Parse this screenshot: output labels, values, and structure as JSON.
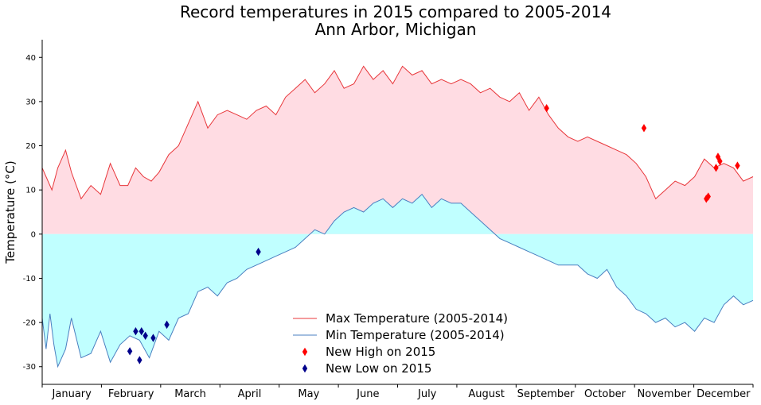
{
  "chart_data": {
    "type": "line",
    "title": "Record temperatures in 2015 compared to 2005-2014",
    "subtitle": "Ann Arbor, Michigan",
    "xlabel": "",
    "ylabel": "Temperature (°C)",
    "xlim": [
      0,
      365
    ],
    "ylim": [
      -34,
      44
    ],
    "yticks": [
      -30,
      -20,
      -10,
      0,
      10,
      20,
      30,
      40
    ],
    "months": [
      "January",
      "February",
      "March",
      "April",
      "May",
      "June",
      "July",
      "August",
      "September",
      "October",
      "November",
      "December"
    ],
    "grid": false,
    "legend": "lower-center",
    "colors": {
      "max_line": "#e8373b",
      "min_line": "#4a7fc0",
      "upper_fill": "#ffdce3",
      "lower_fill": "#c0ffff",
      "high_marker": "#ff0000",
      "low_marker": "#00008b"
    },
    "series": [
      {
        "name": "Max Temperature (2005-2014)",
        "points": [
          [
            0,
            15
          ],
          [
            5,
            10
          ],
          [
            8,
            15
          ],
          [
            12,
            19
          ],
          [
            15,
            14
          ],
          [
            20,
            8
          ],
          [
            25,
            11
          ],
          [
            30,
            9
          ],
          [
            35,
            16
          ],
          [
            40,
            11
          ],
          [
            44,
            11
          ],
          [
            48,
            15
          ],
          [
            52,
            13
          ],
          [
            56,
            12
          ],
          [
            60,
            14
          ],
          [
            65,
            18
          ],
          [
            70,
            20
          ],
          [
            75,
            25
          ],
          [
            80,
            30
          ],
          [
            85,
            24
          ],
          [
            90,
            27
          ],
          [
            95,
            28
          ],
          [
            100,
            27
          ],
          [
            105,
            26
          ],
          [
            110,
            28
          ],
          [
            115,
            29
          ],
          [
            120,
            27
          ],
          [
            125,
            31
          ],
          [
            130,
            33
          ],
          [
            135,
            35
          ],
          [
            140,
            32
          ],
          [
            145,
            34
          ],
          [
            150,
            37
          ],
          [
            155,
            33
          ],
          [
            160,
            34
          ],
          [
            165,
            38
          ],
          [
            170,
            35
          ],
          [
            175,
            37
          ],
          [
            180,
            34
          ],
          [
            185,
            38
          ],
          [
            190,
            36
          ],
          [
            195,
            37
          ],
          [
            200,
            34
          ],
          [
            205,
            35
          ],
          [
            210,
            34
          ],
          [
            215,
            35
          ],
          [
            220,
            34
          ],
          [
            225,
            32
          ],
          [
            230,
            33
          ],
          [
            235,
            31
          ],
          [
            240,
            30
          ],
          [
            245,
            32
          ],
          [
            250,
            28
          ],
          [
            255,
            31
          ],
          [
            260,
            27
          ],
          [
            265,
            24
          ],
          [
            270,
            22
          ],
          [
            275,
            21
          ],
          [
            280,
            22
          ],
          [
            285,
            21
          ],
          [
            290,
            20
          ],
          [
            295,
            19
          ],
          [
            300,
            18
          ],
          [
            305,
            16
          ],
          [
            310,
            13
          ],
          [
            315,
            8
          ],
          [
            320,
            10
          ],
          [
            325,
            12
          ],
          [
            330,
            11
          ],
          [
            335,
            13
          ],
          [
            340,
            17
          ],
          [
            345,
            15
          ],
          [
            350,
            16
          ],
          [
            355,
            15
          ],
          [
            360,
            12
          ],
          [
            365,
            13
          ]
        ]
      },
      {
        "name": "Min Temperature (2005-2014)",
        "points": [
          [
            0,
            -19
          ],
          [
            2,
            -26
          ],
          [
            4,
            -18
          ],
          [
            6,
            -25
          ],
          [
            8,
            -30
          ],
          [
            12,
            -26
          ],
          [
            15,
            -19
          ],
          [
            20,
            -28
          ],
          [
            25,
            -27
          ],
          [
            30,
            -22
          ],
          [
            35,
            -29
          ],
          [
            40,
            -25
          ],
          [
            45,
            -23
          ],
          [
            50,
            -24
          ],
          [
            55,
            -28
          ],
          [
            60,
            -22
          ],
          [
            65,
            -24
          ],
          [
            70,
            -19
          ],
          [
            75,
            -18
          ],
          [
            80,
            -13
          ],
          [
            85,
            -12
          ],
          [
            90,
            -14
          ],
          [
            95,
            -11
          ],
          [
            100,
            -10
          ],
          [
            105,
            -8
          ],
          [
            110,
            -7
          ],
          [
            115,
            -6
          ],
          [
            120,
            -5
          ],
          [
            125,
            -4
          ],
          [
            130,
            -3
          ],
          [
            135,
            -1
          ],
          [
            140,
            1
          ],
          [
            145,
            0
          ],
          [
            150,
            3
          ],
          [
            155,
            5
          ],
          [
            160,
            6
          ],
          [
            165,
            5
          ],
          [
            170,
            7
          ],
          [
            175,
            8
          ],
          [
            180,
            6
          ],
          [
            185,
            8
          ],
          [
            190,
            7
          ],
          [
            195,
            9
          ],
          [
            200,
            6
          ],
          [
            205,
            8
          ],
          [
            210,
            7
          ],
          [
            215,
            7
          ],
          [
            220,
            5
          ],
          [
            225,
            3
          ],
          [
            230,
            1
          ],
          [
            235,
            -1
          ],
          [
            240,
            -2
          ],
          [
            245,
            -3
          ],
          [
            250,
            -4
          ],
          [
            255,
            -5
          ],
          [
            260,
            -6
          ],
          [
            265,
            -7
          ],
          [
            270,
            -7
          ],
          [
            275,
            -7
          ],
          [
            280,
            -9
          ],
          [
            285,
            -10
          ],
          [
            290,
            -8
          ],
          [
            295,
            -12
          ],
          [
            300,
            -14
          ],
          [
            305,
            -17
          ],
          [
            310,
            -18
          ],
          [
            315,
            -20
          ],
          [
            320,
            -19
          ],
          [
            325,
            -21
          ],
          [
            330,
            -20
          ],
          [
            335,
            -22
          ],
          [
            340,
            -19
          ],
          [
            345,
            -20
          ],
          [
            350,
            -16
          ],
          [
            355,
            -14
          ],
          [
            360,
            -16
          ],
          [
            365,
            -15
          ]
        ]
      },
      {
        "name": "New High on 2015",
        "points": [
          [
            259,
            28.5
          ],
          [
            309,
            24
          ],
          [
            341,
            8
          ],
          [
            342,
            8.5
          ],
          [
            346,
            15
          ],
          [
            347,
            17.5
          ],
          [
            348,
            16.5
          ],
          [
            357,
            15.5
          ]
        ]
      },
      {
        "name": "New Low on 2015",
        "points": [
          [
            45,
            -26.5
          ],
          [
            48,
            -22
          ],
          [
            50,
            -28.5
          ],
          [
            51,
            -22
          ],
          [
            53,
            -23
          ],
          [
            57,
            -23.5
          ],
          [
            64,
            -20.5
          ],
          [
            111,
            -4
          ]
        ]
      }
    ]
  }
}
